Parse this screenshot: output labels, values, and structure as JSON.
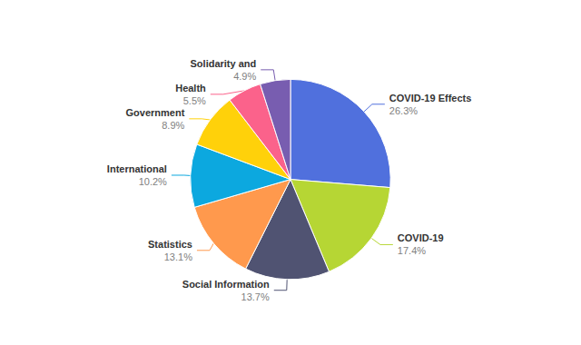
{
  "chart_data": {
    "type": "pie",
    "categories": [
      "COVID-19 Effects",
      "COVID-19",
      "Social Information",
      "Statistics",
      "International",
      "Government",
      "Health",
      "Solidarity and"
    ],
    "values": [
      26.3,
      17.4,
      13.7,
      13.1,
      10.2,
      8.9,
      5.5,
      4.9
    ],
    "value_labels": [
      "26.3%",
      "17.4%",
      "13.7%",
      "13.1%",
      "10.2%",
      "8.9%",
      "5.5%",
      "4.9%"
    ],
    "data_labels": true,
    "legend": false
  }
}
